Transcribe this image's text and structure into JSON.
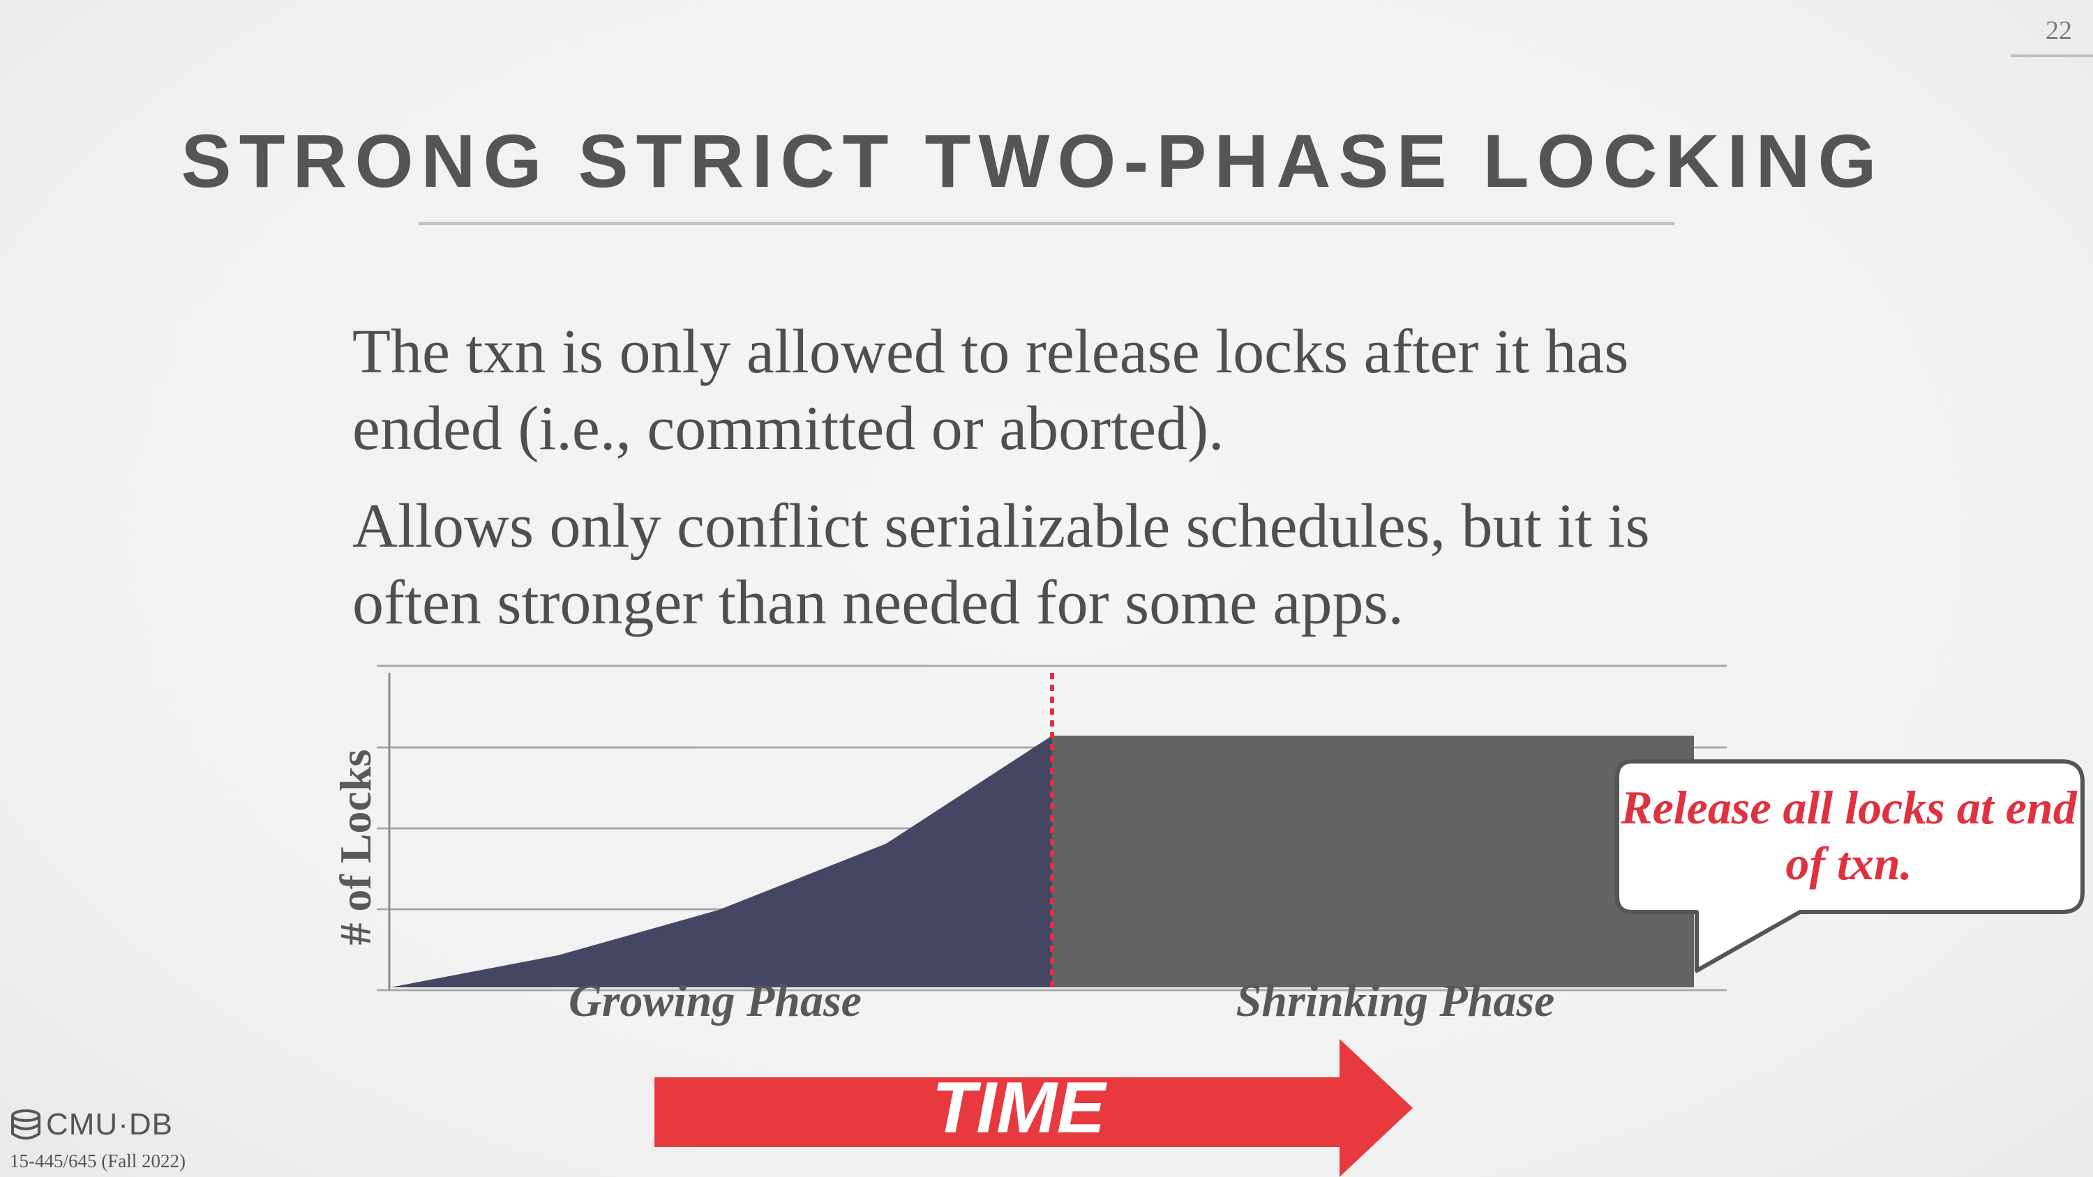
{
  "page_number": "22",
  "title": "STRONG STRICT TWO-PHASE LOCKING",
  "paragraphs": [
    "The txn is only allowed to release locks after it has ended (i.e., committed or aborted).",
    "Allows only conflict serializable schedules, but it is often stronger than needed for some apps."
  ],
  "diagram": {
    "y_axis_label": "# of Locks",
    "growing_phase_label": "Growing Phase",
    "shrinking_phase_label": "Shrinking Phase",
    "callout": "Release all locks at end of txn.",
    "time_label": "TIME",
    "colors": {
      "growing_fill": "#454564",
      "shrinking_fill": "#636363",
      "boundary_line": "#e0313f",
      "arrow": "#e8393f",
      "callout_text": "#e0313f"
    }
  },
  "footer": {
    "logo": "CMU·DB",
    "logo_icon": "database-icon",
    "course": "15-445/645 (Fall 2022)"
  }
}
